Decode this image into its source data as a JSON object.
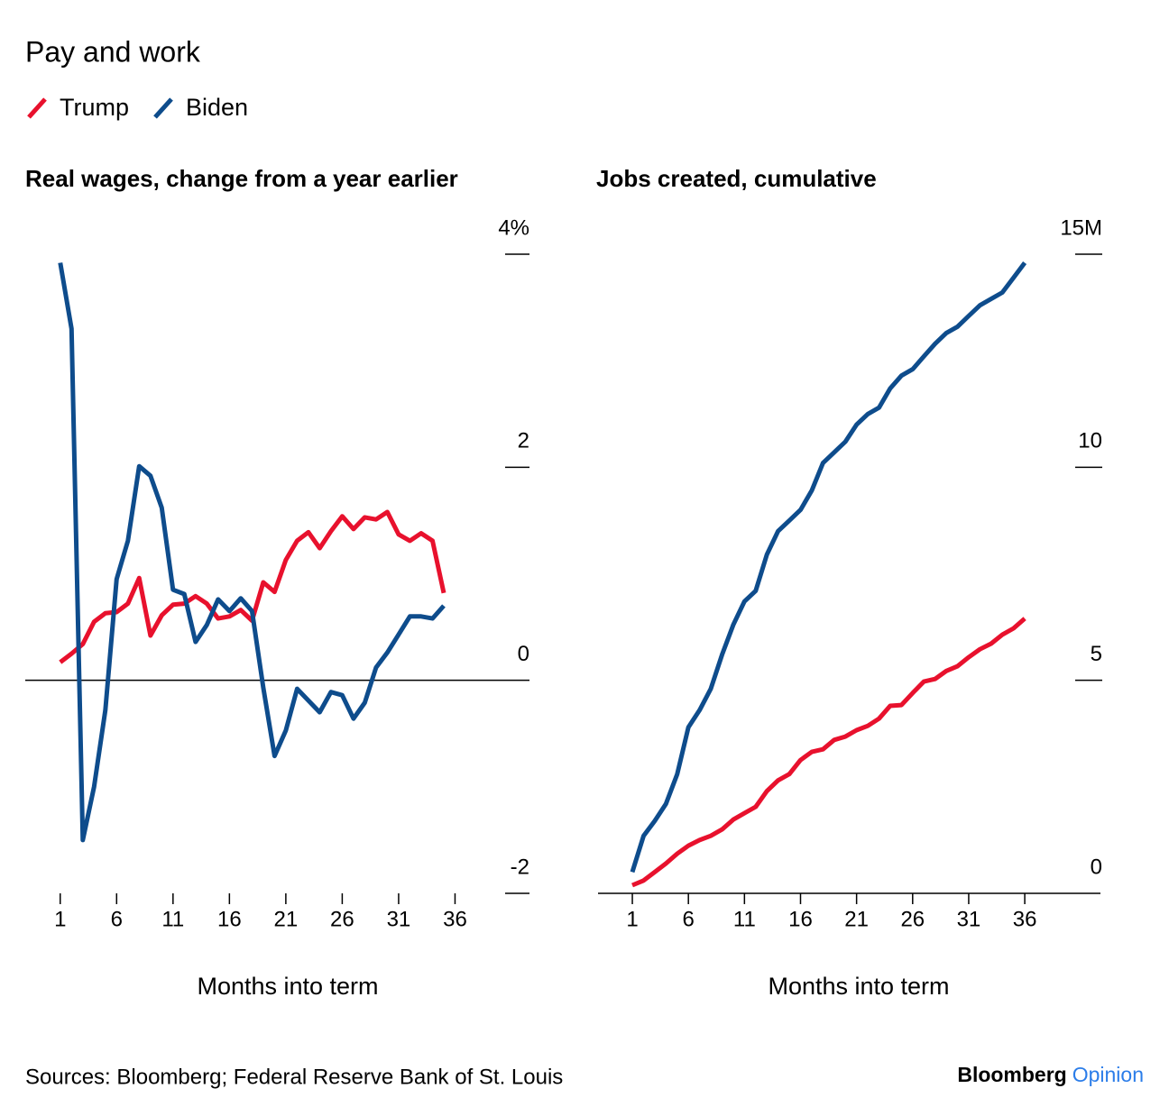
{
  "title": "Pay and work",
  "source": "Sources: Bloomberg; Federal Reserve Bank of St. Louis",
  "brand": "Bloomberg",
  "brand_suffix": "Opinion",
  "chart_data": [
    {
      "type": "line",
      "title": "Real wages, change from a year earlier",
      "x_label": "Months into term",
      "x": [
        1,
        2,
        3,
        4,
        5,
        6,
        7,
        8,
        9,
        10,
        11,
        12,
        13,
        14,
        15,
        16,
        17,
        18,
        19,
        20,
        21,
        22,
        23,
        24,
        25,
        26,
        27,
        28,
        29,
        30,
        31,
        32,
        33,
        34,
        35
      ],
      "xlim": [
        -2.1,
        42.6
      ],
      "xticks": [
        1,
        6,
        11,
        16,
        21,
        26,
        31,
        36
      ],
      "ylim": [
        -2,
        4
      ],
      "yticks": [
        -2,
        0,
        2,
        {
          "value": 4,
          "label": "4%"
        }
      ],
      "series": [
        {
          "name": "Trump",
          "color": "#e8112d",
          "values": [
            0.17,
            0.25,
            0.34,
            0.55,
            0.63,
            0.64,
            0.72,
            0.96,
            0.42,
            0.61,
            0.71,
            0.72,
            0.79,
            0.72,
            0.58,
            0.6,
            0.66,
            0.56,
            0.92,
            0.83,
            1.13,
            1.31,
            1.39,
            1.24,
            1.4,
            1.54,
            1.42,
            1.53,
            1.51,
            1.58,
            1.37,
            1.31,
            1.38,
            1.31,
            0.82
          ]
        },
        {
          "name": "Biden",
          "color": "#0e4c8c",
          "values": [
            3.92,
            3.3,
            -1.5,
            -1.0,
            -0.28,
            0.95,
            1.31,
            2.01,
            1.92,
            1.62,
            0.85,
            0.81,
            0.36,
            0.52,
            0.76,
            0.65,
            0.77,
            0.65,
            -0.07,
            -0.71,
            -0.47,
            -0.08,
            -0.19,
            -0.3,
            -0.11,
            -0.14,
            -0.36,
            -0.21,
            0.12,
            0.26,
            0.43,
            0.6,
            0.6,
            0.58,
            0.7
          ]
        }
      ]
    },
    {
      "type": "line",
      "title": "Jobs created, cumulative",
      "x_label": "Months into term",
      "x": [
        1,
        2,
        3,
        4,
        5,
        6,
        7,
        8,
        9,
        10,
        11,
        12,
        13,
        14,
        15,
        16,
        17,
        18,
        19,
        20,
        21,
        22,
        23,
        24,
        25,
        26,
        27,
        28,
        29,
        30,
        31,
        32,
        33,
        34,
        35,
        36
      ],
      "xlim": [
        -2.06,
        42.75
      ],
      "xticks": [
        1,
        6,
        11,
        16,
        21,
        26,
        31,
        36
      ],
      "ylim": [
        0,
        15
      ],
      "yticks": [
        0,
        5,
        10,
        {
          "value": 15,
          "label": "15M"
        }
      ],
      "series": [
        {
          "name": "Trump",
          "color": "#e8112d",
          "values": [
            0.19,
            0.3,
            0.5,
            0.7,
            0.93,
            1.12,
            1.25,
            1.35,
            1.5,
            1.73,
            1.88,
            2.03,
            2.4,
            2.65,
            2.8,
            3.13,
            3.32,
            3.38,
            3.6,
            3.68,
            3.83,
            3.93,
            4.1,
            4.4,
            4.42,
            4.7,
            4.97,
            5.03,
            5.22,
            5.33,
            5.54,
            5.73,
            5.86,
            6.07,
            6.22,
            6.45
          ]
        },
        {
          "name": "Biden",
          "color": "#0e4c8c",
          "values": [
            0.5,
            1.35,
            1.7,
            2.1,
            2.8,
            3.9,
            4.3,
            4.8,
            5.6,
            6.3,
            6.85,
            7.1,
            7.95,
            8.5,
            8.75,
            9.0,
            9.45,
            10.1,
            10.35,
            10.6,
            11.0,
            11.25,
            11.4,
            11.85,
            12.15,
            12.3,
            12.6,
            12.9,
            13.15,
            13.3,
            13.55,
            13.8,
            13.95,
            14.1,
            14.45,
            14.8
          ]
        }
      ]
    }
  ]
}
